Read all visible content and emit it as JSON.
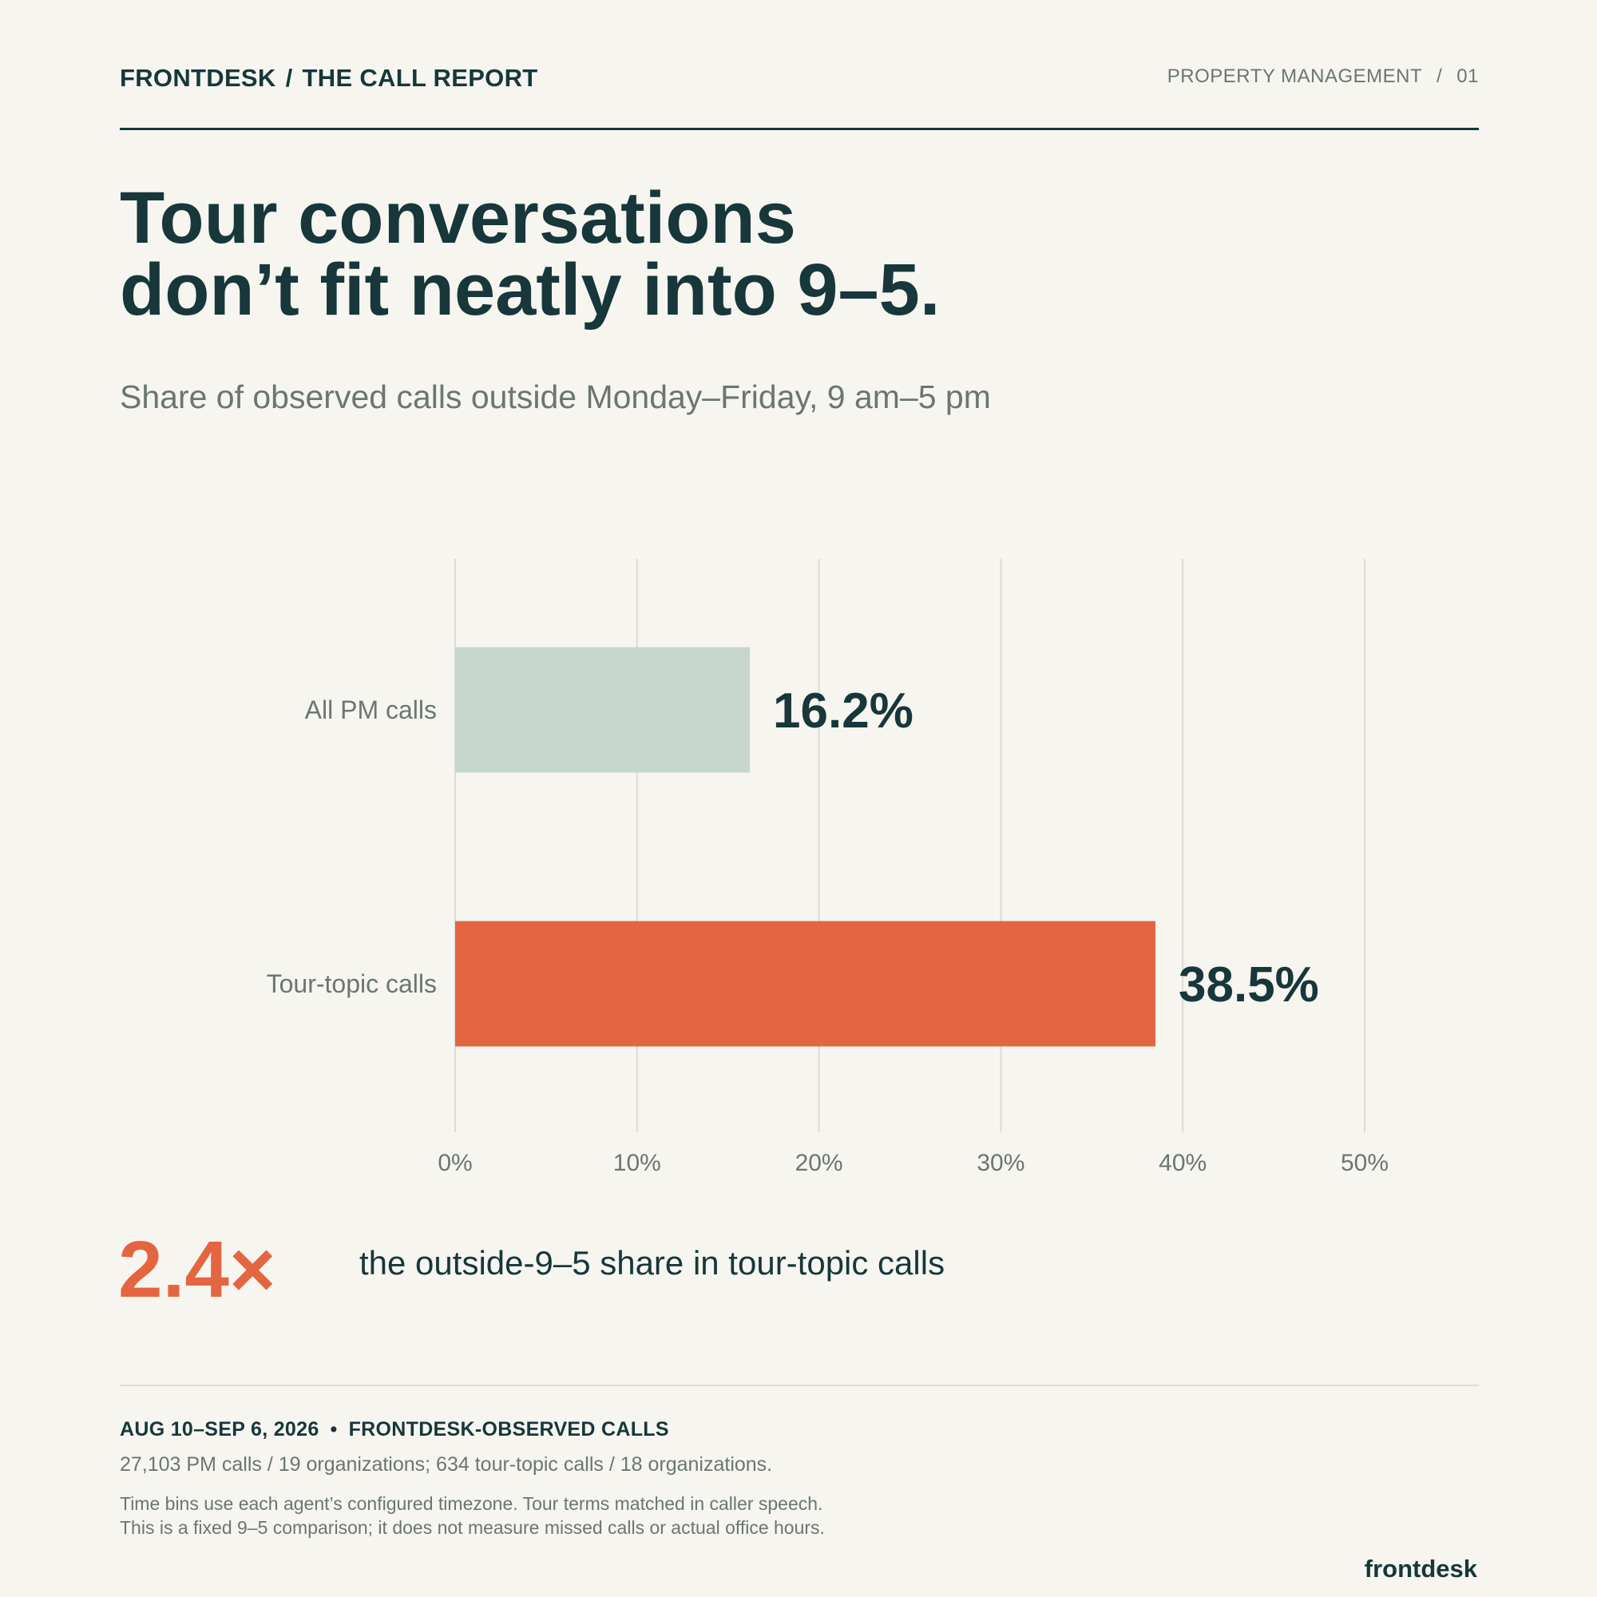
{
  "header": {
    "brand": "FRONTDESK",
    "report": "THE CALL REPORT",
    "section": "PROPERTY MANAGEMENT",
    "page": "01",
    "separator": "/"
  },
  "title": {
    "line1": "Tour conversations",
    "line2": "don’t fit neatly into 9–5."
  },
  "subtitle": "Share of observed calls outside Monday–Friday, 9 am–5 pm",
  "chart_data": {
    "type": "bar",
    "orientation": "horizontal",
    "categories": [
      "All PM calls",
      "Tour-topic calls"
    ],
    "values": [
      16.2,
      38.5
    ],
    "value_labels": [
      "16.2%",
      "38.5%"
    ],
    "colors": [
      "#c7d6cd",
      "#e36641"
    ],
    "xlim": [
      0,
      50
    ],
    "ticks": [
      0,
      10,
      20,
      30,
      40,
      50
    ],
    "tick_labels": [
      "0%",
      "10%",
      "20%",
      "30%",
      "40%",
      "50%"
    ],
    "grid": true,
    "title": "",
    "xlabel": "",
    "ylabel": ""
  },
  "callout": {
    "value": "2.4×",
    "text": "the outside-9–5 share in tour-topic calls"
  },
  "footer": {
    "period": "AUG 10–SEP 6, 2026",
    "bullet": "•",
    "source": "FRONTDESK-OBSERVED CALLS",
    "counts": "27,103 PM calls / 19 organizations; 634 tour-topic calls / 18 organizations.",
    "note_line1": "Time bins use each agent’s configured timezone. Tour terms matched in caller speech.",
    "note_line2": "This is a fixed 9–5 comparison; it does not measure missed calls or actual office hours.",
    "logo": "frontdesk"
  },
  "colors": {
    "ink": "#17373a",
    "muted": "#6b7670",
    "accent": "#e36641",
    "bar_neutral": "#c7d6cd",
    "grid": "#dcdbd5",
    "background": "#f6f5f0"
  }
}
